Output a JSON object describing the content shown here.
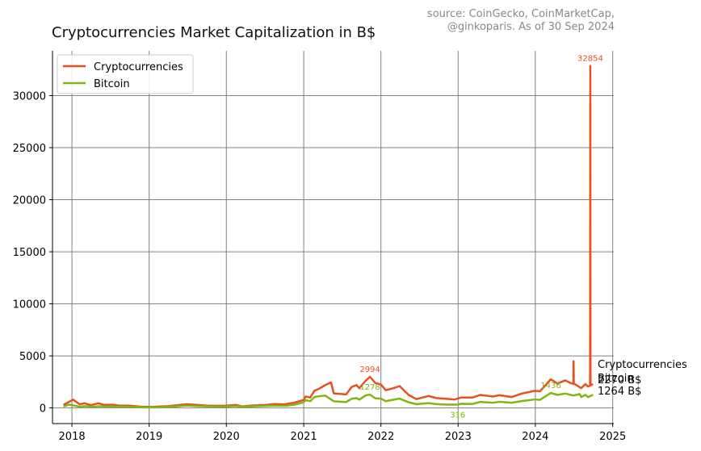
{
  "chart_data": {
    "type": "line",
    "title": "Cryptocurrencies Market Capitalization in B$",
    "source_note": [
      "source: CoinGecko, CoinMarketCap,",
      "@ginkoparis. As of 30 Sep 2024"
    ],
    "xlabel": "",
    "ylabel": "",
    "x_ticks": [
      "2018",
      "2019",
      "2020",
      "2021",
      "2022",
      "2023",
      "2024",
      "2025"
    ],
    "y_ticks": [
      0,
      5000,
      10000,
      15000,
      20000,
      25000,
      30000
    ],
    "xlim": [
      "2017-10-01",
      "2025-01-06"
    ],
    "ylim": [
      -1500,
      34300
    ],
    "grid": true,
    "legend_position": "top-left",
    "series": [
      {
        "name": "Cryptocurrencies",
        "color": "#e8501e",
        "points": [
          [
            "2017-11-22",
            300
          ],
          [
            "2017-12-20",
            600
          ],
          [
            "2018-01-07",
            800
          ],
          [
            "2018-02-06",
            350
          ],
          [
            "2018-03-01",
            450
          ],
          [
            "2018-04-01",
            270
          ],
          [
            "2018-05-05",
            450
          ],
          [
            "2018-06-01",
            300
          ],
          [
            "2018-07-15",
            300
          ],
          [
            "2018-08-15",
            220
          ],
          [
            "2018-10-01",
            220
          ],
          [
            "2018-11-20",
            130
          ],
          [
            "2018-12-15",
            110
          ],
          [
            "2019-02-01",
            120
          ],
          [
            "2019-04-01",
            180
          ],
          [
            "2019-05-15",
            260
          ],
          [
            "2019-06-26",
            360
          ],
          [
            "2019-08-15",
            290
          ],
          [
            "2019-10-01",
            220
          ],
          [
            "2019-12-15",
            200
          ],
          [
            "2020-02-15",
            290
          ],
          [
            "2020-03-15",
            150
          ],
          [
            "2020-05-01",
            230
          ],
          [
            "2020-07-01",
            270
          ],
          [
            "2020-08-15",
            380
          ],
          [
            "2020-10-01",
            350
          ],
          [
            "2020-11-15",
            500
          ],
          [
            "2020-12-31",
            760
          ],
          [
            "2021-01-10",
            1100
          ],
          [
            "2021-02-01",
            1000
          ],
          [
            "2021-02-20",
            1650
          ],
          [
            "2021-03-15",
            1850
          ],
          [
            "2021-04-13",
            2200
          ],
          [
            "2021-05-10",
            2450
          ],
          [
            "2021-05-23",
            1400
          ],
          [
            "2021-06-22",
            1350
          ],
          [
            "2021-07-20",
            1300
          ],
          [
            "2021-08-15",
            2000
          ],
          [
            "2021-09-07",
            2200
          ],
          [
            "2021-09-21",
            1900
          ],
          [
            "2021-10-20",
            2600
          ],
          [
            "2021-11-10",
            2994
          ],
          [
            "2021-12-05",
            2400
          ],
          [
            "2022-01-01",
            2250
          ],
          [
            "2022-01-24",
            1700
          ],
          [
            "2022-03-01",
            1900
          ],
          [
            "2022-03-30",
            2100
          ],
          [
            "2022-05-12",
            1250
          ],
          [
            "2022-06-18",
            850
          ],
          [
            "2022-08-14",
            1150
          ],
          [
            "2022-09-20",
            950
          ],
          [
            "2022-11-09",
            870
          ],
          [
            "2022-12-15",
            810
          ],
          [
            "2023-01-15",
            1000
          ],
          [
            "2023-03-10",
            1000
          ],
          [
            "2023-04-15",
            1250
          ],
          [
            "2023-06-15",
            1100
          ],
          [
            "2023-07-15",
            1220
          ],
          [
            "2023-09-11",
            1050
          ],
          [
            "2023-11-01",
            1400
          ],
          [
            "2023-12-31",
            1650
          ],
          [
            "2024-01-23",
            1600
          ],
          [
            "2024-03-14",
            2750
          ],
          [
            "2024-04-15",
            2350
          ],
          [
            "2024-05-21",
            2650
          ],
          [
            "2024-06-15",
            2400
          ],
          [
            "2024-06-29",
            2300
          ],
          [
            "2024-06-30",
            4500
          ],
          [
            "2024-07-01",
            2350
          ],
          [
            "2024-08-05",
            1900
          ],
          [
            "2024-08-25",
            2300
          ],
          [
            "2024-09-06",
            2050
          ],
          [
            "2024-09-16",
            2150
          ],
          [
            "2024-09-17",
            32854
          ],
          [
            "2024-09-18",
            2200
          ],
          [
            "2024-09-30",
            2270
          ]
        ],
        "annotations": [
          {
            "date": "2021-11-10",
            "value": 2994,
            "label": "2994"
          },
          {
            "date": "2024-09-17",
            "value": 32854,
            "label": "32854"
          }
        ],
        "end_label": "Cryptocurrencies",
        "end_value_label": "2270 B$"
      },
      {
        "name": "Bitcoin",
        "color": "#82b511",
        "points": [
          [
            "2017-11-22",
            140
          ],
          [
            "2017-12-17",
            320
          ],
          [
            "2018-01-15",
            220
          ],
          [
            "2018-02-06",
            120
          ],
          [
            "2018-03-05",
            180
          ],
          [
            "2018-04-06",
            110
          ],
          [
            "2018-05-05",
            160
          ],
          [
            "2018-07-25",
            140
          ],
          [
            "2018-09-15",
            110
          ],
          [
            "2018-11-20",
            75
          ],
          [
            "2018-12-15",
            60
          ],
          [
            "2019-02-01",
            65
          ],
          [
            "2019-04-01",
            90
          ],
          [
            "2019-06-26",
            230
          ],
          [
            "2019-08-15",
            180
          ],
          [
            "2019-10-01",
            150
          ],
          [
            "2019-12-15",
            130
          ],
          [
            "2020-02-15",
            180
          ],
          [
            "2020-03-15",
            100
          ],
          [
            "2020-06-01",
            180
          ],
          [
            "2020-08-15",
            220
          ],
          [
            "2020-10-01",
            200
          ],
          [
            "2020-11-15",
            300
          ],
          [
            "2020-12-31",
            540
          ],
          [
            "2021-01-10",
            750
          ],
          [
            "2021-02-01",
            650
          ],
          [
            "2021-02-21",
            1050
          ],
          [
            "2021-03-13",
            1120
          ],
          [
            "2021-04-13",
            1180
          ],
          [
            "2021-05-23",
            640
          ],
          [
            "2021-06-22",
            600
          ],
          [
            "2021-07-20",
            560
          ],
          [
            "2021-08-15",
            880
          ],
          [
            "2021-09-07",
            950
          ],
          [
            "2021-09-21",
            800
          ],
          [
            "2021-10-20",
            1200
          ],
          [
            "2021-11-10",
            1278
          ],
          [
            "2021-12-05",
            930
          ],
          [
            "2022-01-01",
            890
          ],
          [
            "2022-01-24",
            650
          ],
          [
            "2022-03-30",
            900
          ],
          [
            "2022-05-12",
            550
          ],
          [
            "2022-06-18",
            360
          ],
          [
            "2022-08-14",
            470
          ],
          [
            "2022-09-20",
            370
          ],
          [
            "2022-11-09",
            320
          ],
          [
            "2022-12-30",
            316
          ],
          [
            "2023-01-15",
            400
          ],
          [
            "2023-03-10",
            390
          ],
          [
            "2023-04-15",
            580
          ],
          [
            "2023-06-15",
            500
          ],
          [
            "2023-07-15",
            590
          ],
          [
            "2023-09-11",
            500
          ],
          [
            "2023-11-01",
            670
          ],
          [
            "2023-12-31",
            820
          ],
          [
            "2024-01-23",
            780
          ],
          [
            "2024-03-14",
            1436
          ],
          [
            "2024-04-15",
            1250
          ],
          [
            "2024-05-21",
            1380
          ],
          [
            "2024-06-29",
            1200
          ],
          [
            "2024-07-29",
            1330
          ],
          [
            "2024-08-05",
            1050
          ],
          [
            "2024-08-25",
            1260
          ],
          [
            "2024-09-06",
            1040
          ],
          [
            "2024-09-30",
            1264
          ]
        ],
        "annotations": [
          {
            "date": "2021-11-10",
            "value": 1278,
            "label": "1278"
          },
          {
            "date": "2022-12-30",
            "value": 316,
            "label": "316"
          },
          {
            "date": "2024-03-14",
            "value": 1436,
            "label": "1436"
          }
        ],
        "end_label": "Bitcoin",
        "end_value_label": "1264 B$"
      }
    ]
  }
}
